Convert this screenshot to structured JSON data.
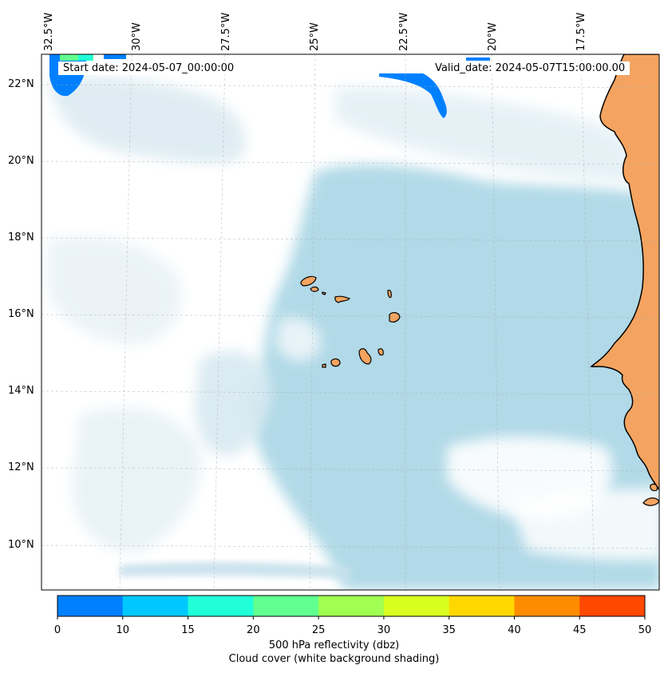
{
  "map": {
    "start_date": "Start date: 2024-05-07_00:00:00",
    "valid_date": "Valid_date: 2024-05-07T15:00:00.00",
    "lat_ticks": [
      "22°N",
      "20°N",
      "18°N",
      "16°N",
      "14°N",
      "12°N",
      "10°N"
    ],
    "lon_ticks": [
      "32.5°W",
      "30°W",
      "27.5°W",
      "25°W",
      "22.5°W",
      "20°W",
      "17.5°W"
    ],
    "colors": {
      "ocean_cloud": "#add8e6",
      "land": "#f4a460",
      "coastline": "#000000"
    }
  },
  "colorbar": {
    "ticks": [
      "0",
      "10",
      "15",
      "20",
      "25",
      "30",
      "35",
      "40",
      "45",
      "50"
    ],
    "colors": [
      "#0080ff",
      "#00c8ff",
      "#20ffd8",
      "#60ff90",
      "#a0ff50",
      "#d8ff20",
      "#ffd800",
      "#ff8c00",
      "#ff4800"
    ],
    "label_primary": "500 hPa reflectivity (dbz)",
    "label_secondary": "Cloud cover (white background shading)"
  }
}
